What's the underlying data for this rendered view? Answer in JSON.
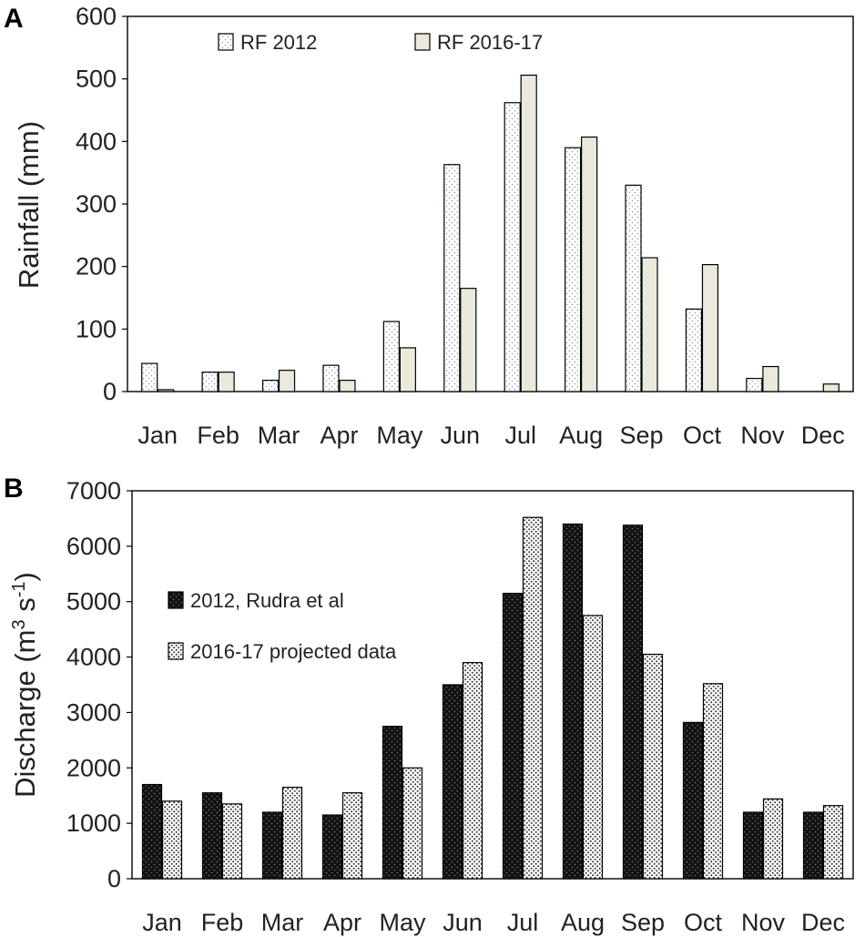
{
  "chart_data": [
    {
      "panel": "A",
      "type": "bar",
      "categories": [
        "Jan",
        "Feb",
        "Mar",
        "Apr",
        "May",
        "Jun",
        "Jul",
        "Aug",
        "Sep",
        "Oct",
        "Nov",
        "Dec"
      ],
      "series": [
        {
          "name": "RF 2012",
          "values": [
            45,
            31,
            18,
            42,
            112,
            363,
            462,
            390,
            330,
            132,
            21,
            0
          ]
        },
        {
          "name": "RF 2016-17",
          "values": [
            3,
            31,
            34,
            18,
            70,
            165,
            506,
            407,
            214,
            203,
            40,
            12
          ]
        }
      ],
      "ylabel": "Rainfall (mm)",
      "xlabel": "",
      "ylim": [
        0,
        600
      ],
      "yticks": [
        "0",
        "100",
        "200",
        "300",
        "400",
        "500",
        "600"
      ],
      "grid": false,
      "legend_position": "top-left"
    },
    {
      "panel": "B",
      "type": "bar",
      "categories": [
        "Jan",
        "Feb",
        "Mar",
        "Apr",
        "May",
        "Jun",
        "Jul",
        "Aug",
        "Sep",
        "Oct",
        "Nov",
        "Dec"
      ],
      "series": [
        {
          "name": "2012, Rudra et al",
          "values": [
            1700,
            1550,
            1200,
            1150,
            2750,
            3500,
            5150,
            6400,
            6380,
            2820,
            1200,
            1200
          ]
        },
        {
          "name": "2016-17 projected data",
          "values": [
            1400,
            1350,
            1650,
            1550,
            2000,
            3900,
            6520,
            4750,
            4050,
            3520,
            1440,
            1320
          ]
        }
      ],
      "ylabel": "Discharge (m",
      "ylabel_sup1": "3",
      "ylabel_mid": " s",
      "ylabel_sup2": "-1",
      "ylabel_end": ")",
      "xlabel": "",
      "ylim": [
        0,
        7000
      ],
      "yticks": [
        "0",
        "1000",
        "2000",
        "3000",
        "4000",
        "5000",
        "6000",
        "7000"
      ],
      "grid": false,
      "legend_position": "left"
    }
  ],
  "colors": {
    "rf2012": "#ffffff",
    "rf2012_dot": "#8a9bb8",
    "rf2016": "#ebe9dc",
    "dis2012": "#111111",
    "dis2012_dot": "#666666",
    "dis2016": "#ffffff",
    "dis2016_dot": "#333333"
  }
}
